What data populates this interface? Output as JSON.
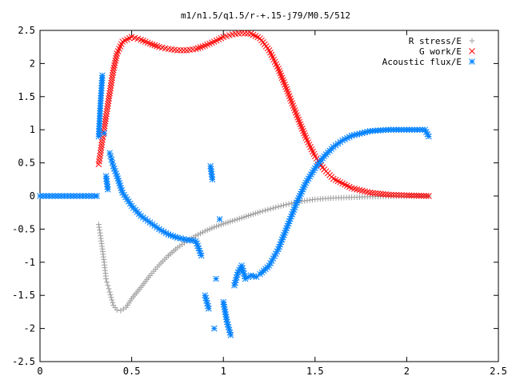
{
  "chart_data": {
    "type": "scatter",
    "title": "m1/n1.5/q1.5/r-+.15-j79/M0.5/512",
    "xlabel": "",
    "ylabel": "",
    "xlim": [
      0,
      2.5
    ],
    "ylim": [
      -2.5,
      2.5
    ],
    "xticks": [
      "0",
      "0.5",
      "1",
      "1.5",
      "2",
      "2.5"
    ],
    "yticks": [
      "-2.5",
      "-2",
      "-1.5",
      "-1",
      "-0.5",
      "0",
      "0.5",
      "1",
      "1.5",
      "2",
      "2.5"
    ],
    "grid": false,
    "legend_position": "top-right",
    "series": [
      {
        "name": "R stress/E",
        "marker": "+",
        "color": "#a0a0a0",
        "x": [
          0.32,
          0.33,
          0.34,
          0.35,
          0.36,
          0.37,
          0.38,
          0.4,
          0.42,
          0.44,
          0.47,
          0.5,
          0.55,
          0.6,
          0.65,
          0.7,
          0.75,
          0.8,
          0.85,
          0.9,
          0.95,
          1.0,
          1.1,
          1.2,
          1.3,
          1.4,
          1.5,
          1.6,
          1.7,
          1.8,
          1.9,
          2.0,
          2.12
        ],
        "y": [
          -0.43,
          -0.6,
          -0.8,
          -1.0,
          -1.25,
          -1.35,
          -1.45,
          -1.65,
          -1.72,
          -1.73,
          -1.68,
          -1.55,
          -1.38,
          -1.2,
          -1.04,
          -0.9,
          -0.78,
          -0.68,
          -0.6,
          -0.53,
          -0.47,
          -0.42,
          -0.33,
          -0.24,
          -0.16,
          -0.09,
          -0.05,
          -0.03,
          -0.02,
          -0.01,
          -0.005,
          0.0,
          0.0
        ]
      },
      {
        "name": "G work/E",
        "marker": "x",
        "color": "#ff0000",
        "x": [
          0.32,
          0.33,
          0.34,
          0.35,
          0.36,
          0.38,
          0.4,
          0.42,
          0.45,
          0.5,
          0.55,
          0.6,
          0.65,
          0.7,
          0.75,
          0.8,
          0.85,
          0.9,
          0.95,
          1.0,
          1.05,
          1.1,
          1.15,
          1.2,
          1.25,
          1.3,
          1.35,
          1.4,
          1.45,
          1.5,
          1.55,
          1.6,
          1.7,
          1.8,
          1.9,
          2.0,
          2.12
        ],
        "y": [
          0.48,
          0.65,
          0.85,
          1.02,
          1.2,
          1.55,
          1.9,
          2.15,
          2.33,
          2.4,
          2.36,
          2.3,
          2.25,
          2.22,
          2.2,
          2.2,
          2.22,
          2.27,
          2.33,
          2.4,
          2.44,
          2.46,
          2.45,
          2.38,
          2.2,
          1.92,
          1.58,
          1.22,
          0.88,
          0.6,
          0.4,
          0.26,
          0.12,
          0.05,
          0.02,
          0.01,
          0.0
        ]
      },
      {
        "name": "Acoustic flux/E",
        "marker": "*",
        "color": "#0080ff",
        "x": [
          0.0,
          0.05,
          0.1,
          0.15,
          0.2,
          0.25,
          0.3,
          0.31,
          0.32,
          0.33,
          0.34,
          0.35,
          0.36,
          0.37,
          0.38,
          0.39,
          0.4,
          0.42,
          0.45,
          0.5,
          0.55,
          0.6,
          0.65,
          0.7,
          0.75,
          0.8,
          0.85,
          0.88,
          0.9,
          0.92,
          0.93,
          0.94,
          0.95,
          0.96,
          0.98,
          1.0,
          1.02,
          1.04,
          1.06,
          1.08,
          1.1,
          1.12,
          1.15,
          1.18,
          1.2,
          1.25,
          1.3,
          1.35,
          1.4,
          1.45,
          1.5,
          1.55,
          1.6,
          1.65,
          1.7,
          1.8,
          1.9,
          2.0,
          2.1,
          2.12
        ],
        "y": [
          0.0,
          0.0,
          0.0,
          0.0,
          0.0,
          0.0,
          0.0,
          0.0,
          0.9,
          1.4,
          1.82,
          0.95,
          0.3,
          0.1,
          0.65,
          0.55,
          0.45,
          0.3,
          0.05,
          -0.15,
          -0.3,
          -0.4,
          -0.5,
          -0.58,
          -0.63,
          -0.66,
          -0.68,
          -0.9,
          -1.5,
          -1.7,
          0.45,
          0.25,
          -2.0,
          -1.25,
          -0.35,
          -1.6,
          -1.9,
          -2.1,
          -1.35,
          -1.15,
          -1.05,
          -1.25,
          -1.2,
          -1.22,
          -1.18,
          -1.05,
          -0.8,
          -0.45,
          -0.1,
          0.2,
          0.42,
          0.6,
          0.74,
          0.84,
          0.91,
          0.98,
          1.0,
          1.0,
          1.0,
          0.9
        ]
      }
    ]
  }
}
